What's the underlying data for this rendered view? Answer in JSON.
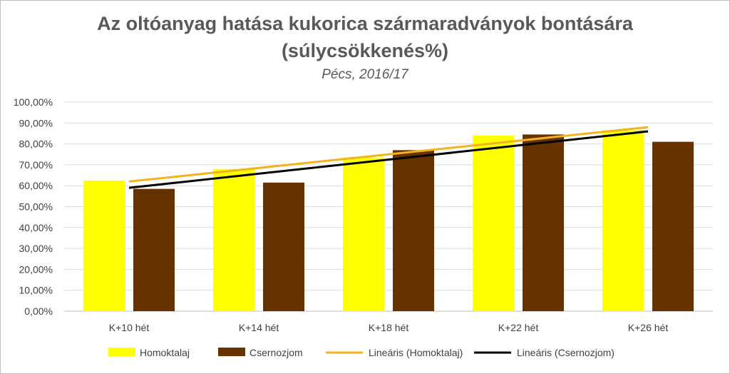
{
  "chart_data": {
    "type": "bar",
    "title": "Az oltóanyag hatása kukorica szármaradványok bontására",
    "title_line2": "(súlycsökkenés%)",
    "subtitle": "Pécs, 2016/17",
    "categories": [
      "K+10 hét",
      "K+14 hét",
      "K+18 hét",
      "K+22 hét",
      "K+26 hét"
    ],
    "series": [
      {
        "name": "Homoktalaj",
        "values": [
          62.5,
          68.0,
          73.5,
          84.0,
          86.5
        ],
        "color": "#ffff00"
      },
      {
        "name": "Csernozjom",
        "values": [
          58.5,
          61.5,
          77.0,
          84.5,
          81.0
        ],
        "color": "#663300"
      }
    ],
    "trendlines": [
      {
        "name": "Lineáris (Homoktalaj)",
        "of_series": "Homoktalaj",
        "type": "linear",
        "start": 62.0,
        "end": 88.0,
        "color": "#f4b31c"
      },
      {
        "name": "Lineáris (Csernozjom)",
        "of_series": "Csernozjom",
        "type": "linear",
        "start": 59.0,
        "end": 86.0,
        "color": "#000000"
      }
    ],
    "yticks": [
      "0,00%",
      "10,00%",
      "20,00%",
      "30,00%",
      "40,00%",
      "50,00%",
      "60,00%",
      "70,00%",
      "80,00%",
      "90,00%",
      "100,00%"
    ],
    "ylim": [
      0,
      100
    ],
    "xlabel": "",
    "ylabel": "",
    "grid": true,
    "legend_position": "bottom"
  }
}
